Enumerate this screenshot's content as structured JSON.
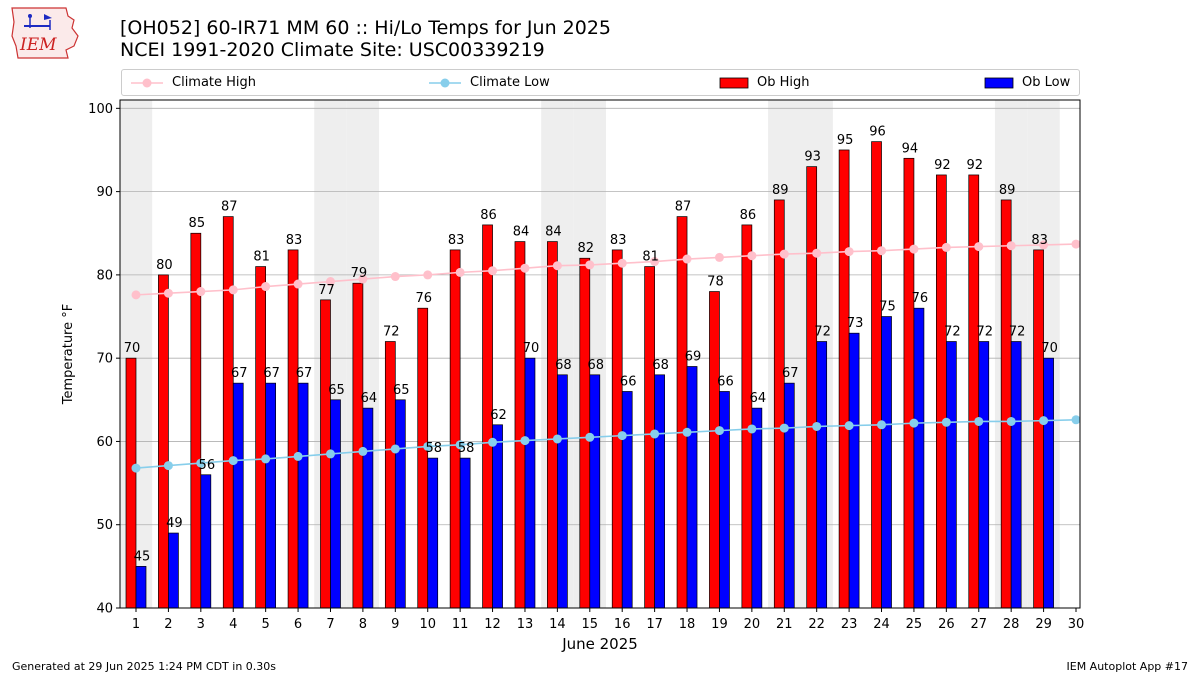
{
  "title_line1": "[OH052] 60-IR71 MM 60 :: Hi/Lo Temps for Jun 2025",
  "title_line2": "NCEI 1991-2020 Climate Site: USC00339219",
  "logo_text": "IEM",
  "footer_left": "Generated at 29 Jun 2025 1:24 PM CDT in 0.30s",
  "footer_right": "IEM Autoplot App #17",
  "colors": {
    "ob_high": "#ff0000",
    "ob_low": "#0000ff",
    "climate_high": "#ffc0cb",
    "climate_low": "#87ceeb",
    "weekend_band": "#eeeeee",
    "grid": "#b0b0b0"
  },
  "chart_data": {
    "type": "bar",
    "title": "[OH052] 60-IR71 MM 60 :: Hi/Lo Temps for Jun 2025",
    "xlabel": "June 2025",
    "ylabel": "Temperature °F",
    "ylim": [
      40,
      101
    ],
    "yticks": [
      40,
      50,
      60,
      70,
      80,
      90,
      100
    ],
    "grid": true,
    "legend_position": "top",
    "weekend_days": [
      1,
      7,
      8,
      14,
      15,
      21,
      22,
      28,
      29
    ],
    "categories": [
      1,
      2,
      3,
      4,
      5,
      6,
      7,
      8,
      9,
      10,
      11,
      12,
      13,
      14,
      15,
      16,
      17,
      18,
      19,
      20,
      21,
      22,
      23,
      24,
      25,
      26,
      27,
      28,
      29,
      30
    ],
    "series": [
      {
        "name": "Ob High",
        "kind": "bar",
        "values": [
          70,
          80,
          85,
          87,
          81,
          83,
          77,
          79,
          72,
          76,
          83,
          86,
          84,
          84,
          82,
          83,
          81,
          87,
          78,
          86,
          89,
          93,
          95,
          96,
          94,
          92,
          92,
          89,
          83,
          null
        ]
      },
      {
        "name": "Ob Low",
        "kind": "bar",
        "values": [
          45,
          49,
          56,
          67,
          67,
          67,
          65,
          64,
          65,
          58,
          58,
          62,
          70,
          68,
          68,
          66,
          68,
          69,
          66,
          64,
          67,
          72,
          73,
          75,
          76,
          72,
          72,
          72,
          70,
          null
        ]
      },
      {
        "name": "Climate High",
        "kind": "line",
        "values": [
          77.6,
          77.8,
          78.0,
          78.2,
          78.6,
          78.9,
          79.2,
          79.5,
          79.8,
          80.0,
          80.3,
          80.5,
          80.8,
          81.1,
          81.2,
          81.4,
          81.6,
          81.9,
          82.1,
          82.3,
          82.5,
          82.6,
          82.8,
          82.9,
          83.1,
          83.3,
          83.4,
          83.5,
          83.6,
          83.7
        ]
      },
      {
        "name": "Climate Low",
        "kind": "line",
        "values": [
          56.8,
          57.1,
          57.4,
          57.7,
          57.9,
          58.2,
          58.5,
          58.8,
          59.1,
          59.4,
          59.6,
          59.9,
          60.1,
          60.3,
          60.5,
          60.7,
          60.9,
          61.1,
          61.3,
          61.5,
          61.6,
          61.8,
          61.9,
          62.0,
          62.2,
          62.3,
          62.4,
          62.4,
          62.5,
          62.6
        ]
      }
    ]
  }
}
